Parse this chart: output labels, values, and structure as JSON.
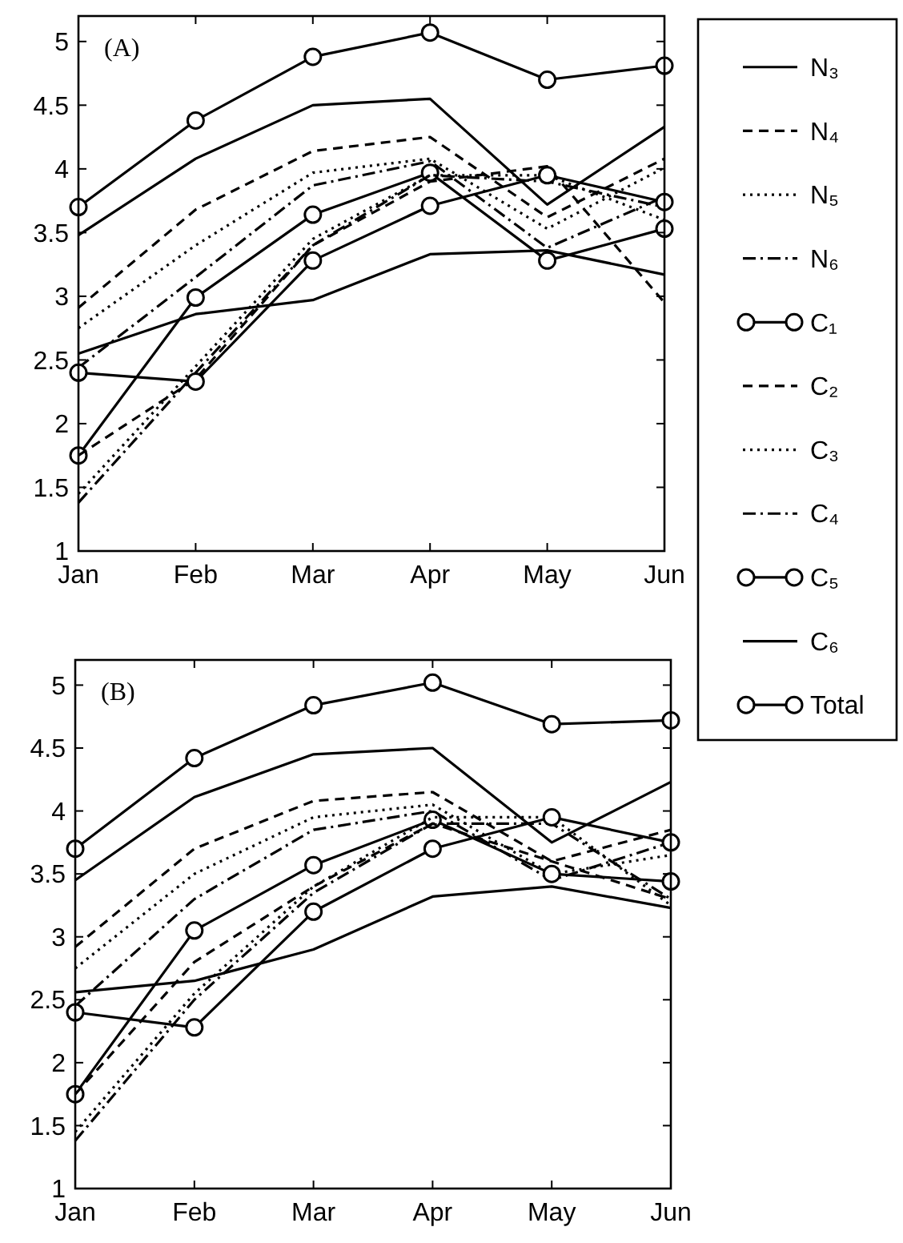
{
  "chart_data": [
    {
      "type": "line",
      "title": "(A)",
      "categories": [
        "Jan",
        "Feb",
        "Mar",
        "Apr",
        "May",
        "Jun"
      ],
      "ylim": [
        1,
        5.2
      ],
      "yticks": [
        1,
        1.5,
        2,
        2.5,
        3,
        3.5,
        4,
        4.5,
        5
      ],
      "grid": false,
      "legend": "right",
      "series": [
        {
          "name": "N₃",
          "color": "#000000",
          "line_style": "solid",
          "marker": "none",
          "values": [
            3.48,
            4.08,
            4.5,
            4.55,
            3.72,
            4.33
          ]
        },
        {
          "name": "N₄",
          "color": "#000000",
          "line_style": "dashed",
          "marker": "none",
          "values": [
            2.91,
            3.68,
            4.14,
            4.25,
            3.62,
            4.08
          ]
        },
        {
          "name": "N₅",
          "color": "#000000",
          "line_style": "dotted",
          "marker": "none",
          "values": [
            2.75,
            3.4,
            3.97,
            4.08,
            3.53,
            4.01
          ]
        },
        {
          "name": "N₆",
          "color": "#000000",
          "line_style": "dashdot",
          "marker": "none",
          "values": [
            2.44,
            3.15,
            3.87,
            4.06,
            3.38,
            3.78
          ]
        },
        {
          "name": "C₁",
          "color": "#000000",
          "line_style": "solid",
          "marker": "circle",
          "values": [
            1.75,
            2.99,
            3.64,
            3.97,
            3.28,
            3.53
          ]
        },
        {
          "name": "C₂",
          "color": "#000000",
          "line_style": "dashed",
          "marker": "none",
          "values": [
            1.75,
            2.35,
            3.4,
            3.9,
            4.02,
            2.95
          ]
        },
        {
          "name": "C₃",
          "color": "#000000",
          "line_style": "dotted",
          "marker": "none",
          "values": [
            1.45,
            2.45,
            3.45,
            3.95,
            3.95,
            3.6
          ]
        },
        {
          "name": "C₄",
          "color": "#000000",
          "line_style": "dashdot",
          "marker": "none",
          "values": [
            1.38,
            2.4,
            3.4,
            3.95,
            3.9,
            3.7
          ]
        },
        {
          "name": "C₅",
          "color": "#000000",
          "line_style": "solid",
          "marker": "circle",
          "values": [
            2.4,
            2.33,
            3.28,
            3.71,
            3.95,
            3.74
          ]
        },
        {
          "name": "C₆",
          "color": "#000000",
          "line_style": "solid",
          "marker": "none",
          "values": [
            2.55,
            2.86,
            2.97,
            3.33,
            3.36,
            3.17
          ]
        },
        {
          "name": "Total",
          "color": "#000000",
          "line_style": "solid",
          "marker": "circle",
          "values": [
            3.7,
            4.38,
            4.88,
            5.07,
            4.7,
            4.81
          ]
        }
      ]
    },
    {
      "type": "line",
      "title": "(B)",
      "categories": [
        "Jan",
        "Feb",
        "Mar",
        "Apr",
        "May",
        "Jun"
      ],
      "ylim": [
        1,
        5.2
      ],
      "yticks": [
        1,
        1.5,
        2,
        2.5,
        3,
        3.5,
        4,
        4.5,
        5
      ],
      "grid": false,
      "series": [
        {
          "color": "#000000",
          "line_style": "solid",
          "marker": "none",
          "values": [
            3.45,
            4.11,
            4.45,
            4.5,
            3.75,
            4.23
          ]
        },
        {
          "color": "#000000",
          "line_style": "dashed",
          "marker": "none",
          "values": [
            2.92,
            3.7,
            4.08,
            4.15,
            3.6,
            3.85
          ]
        },
        {
          "color": "#000000",
          "line_style": "dotted",
          "marker": "none",
          "values": [
            2.75,
            3.5,
            3.95,
            4.05,
            3.5,
            3.65
          ]
        },
        {
          "color": "#000000",
          "line_style": "dashdot",
          "marker": "none",
          "values": [
            2.45,
            3.3,
            3.85,
            4.0,
            3.45,
            3.75
          ]
        },
        {
          "color": "#000000",
          "line_style": "solid",
          "marker": "circle",
          "values": [
            1.75,
            3.05,
            3.57,
            3.93,
            3.5,
            3.44
          ]
        },
        {
          "color": "#000000",
          "line_style": "dashed",
          "marker": "none",
          "values": [
            1.75,
            2.8,
            3.4,
            3.9,
            3.6,
            3.3
          ]
        },
        {
          "color": "#000000",
          "line_style": "dotted",
          "marker": "none",
          "values": [
            1.45,
            2.55,
            3.4,
            3.95,
            3.95,
            3.25
          ]
        },
        {
          "color": "#000000",
          "line_style": "dashdot",
          "marker": "none",
          "values": [
            1.38,
            2.5,
            3.35,
            3.9,
            3.9,
            3.3
          ]
        },
        {
          "color": "#000000",
          "line_style": "solid",
          "marker": "circle",
          "values": [
            2.4,
            2.28,
            3.2,
            3.7,
            3.95,
            3.75
          ]
        },
        {
          "color": "#000000",
          "line_style": "solid",
          "marker": "none",
          "values": [
            2.56,
            2.65,
            2.9,
            3.32,
            3.4,
            3.23
          ]
        },
        {
          "color": "#000000",
          "line_style": "solid",
          "marker": "circle",
          "values": [
            3.7,
            4.42,
            4.84,
            5.02,
            4.69,
            4.72
          ]
        }
      ]
    }
  ]
}
